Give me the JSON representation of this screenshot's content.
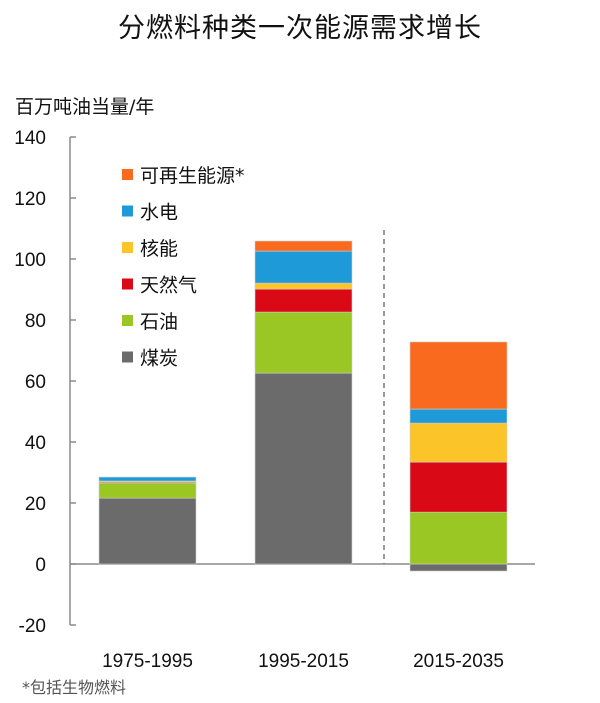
{
  "title": "分燃料种类一次能源需求增长",
  "unit_label": "百万吨油当量/年",
  "footnote": "*包括生物燃料",
  "colors": {
    "renewables": "#F96A1E",
    "hydro": "#1E9AD8",
    "nuclear": "#FBC52A",
    "gas": "#D90A16",
    "oil": "#9AC724",
    "coal": "#6B6B6B",
    "axis": "#8A8A8A"
  },
  "legend": [
    {
      "key": "renewables",
      "label": "可再生能源*"
    },
    {
      "key": "hydro",
      "label": "水电"
    },
    {
      "key": "nuclear",
      "label": "核能"
    },
    {
      "key": "gas",
      "label": "天然气"
    },
    {
      "key": "oil",
      "label": "石油"
    },
    {
      "key": "coal",
      "label": "煤炭"
    }
  ],
  "chart_data": {
    "type": "bar",
    "stacked": true,
    "title": "分燃料种类一次能源需求增长",
    "xlabel": "",
    "ylabel": "百万吨油当量/年",
    "ylim": [
      -20,
      140
    ],
    "yticks": [
      -20,
      0,
      20,
      40,
      60,
      80,
      100,
      120,
      140
    ],
    "categories": [
      "1975-1995",
      "1995-2015",
      "2015-2035"
    ],
    "series": [
      {
        "name": "煤炭",
        "values": [
          21.6,
          62.6,
          -2.3
        ]
      },
      {
        "name": "石油",
        "values": [
          5.0,
          20.0,
          17.0
        ]
      },
      {
        "name": "天然气",
        "values": [
          0.3,
          7.5,
          16.4
        ]
      },
      {
        "name": "核能",
        "values": [
          0.3,
          2.0,
          12.8
        ]
      },
      {
        "name": "水电",
        "values": [
          1.3,
          10.5,
          4.6
        ]
      },
      {
        "name": "可再生能源*",
        "values": [
          0.0,
          3.3,
          22.0
        ]
      }
    ],
    "legend_position": "upper-left inside",
    "grid": false,
    "annotations": [
      "dashed vertical separator between 1995-2015 and 2015-2035 (projection)",
      "*包括生物燃料"
    ]
  }
}
